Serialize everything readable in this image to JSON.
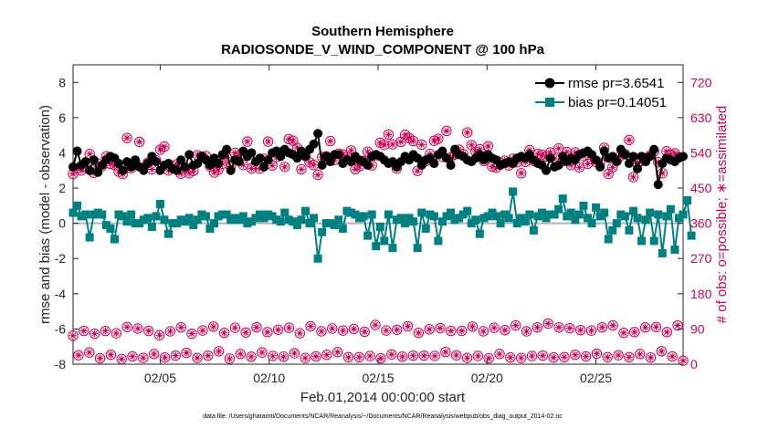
{
  "chart_data": {
    "type": "line",
    "title": "Southern Hemisphere",
    "subtitle": "RADIOSONDE_V_WIND_COMPONENT @ 100 hPa",
    "xlabel": "Feb.01,2014 00:00:00 start",
    "ylabel": "rmse and bias (model - observation)",
    "y2label": "# of obs: o=possible; ∗=assimilated",
    "footer": "data file: /Users/gharamti/Documents/NCAR/Reanalysis/~/Documents/NCAR/Reanalysis/webpub/obs_diag_output_2014-02.nc",
    "xlim": [
      1,
      29
    ],
    "ylim": [
      -8,
      9
    ],
    "y2lim": [
      0,
      765
    ],
    "x_ticks": [
      5,
      10,
      15,
      20,
      25
    ],
    "x_tick_labels": [
      "02/05",
      "02/10",
      "02/15",
      "02/20",
      "02/25"
    ],
    "y_ticks": [
      -8,
      -6,
      -4,
      -2,
      0,
      2,
      4,
      6,
      8
    ],
    "y_tick_labels": [
      "-8",
      "-6",
      "-4",
      "-2",
      "0",
      "2",
      "4",
      "6",
      "8"
    ],
    "y2_ticks": [
      0,
      90,
      180,
      270,
      360,
      450,
      540,
      630,
      720
    ],
    "y2_tick_labels": [
      "0",
      "90",
      "180",
      "270",
      "360",
      "450",
      "540",
      "630",
      "720"
    ],
    "zero_line": 0,
    "legend_position": "top-right",
    "colors": {
      "rmse": "#000000",
      "bias": "#008080",
      "obs": "#cc0055",
      "zero": "#b3b3b3"
    },
    "series": [
      {
        "name": "rmse pr=3.6541",
        "marker": "circle",
        "values": [
          3.2,
          4.1,
          3.3,
          3.5,
          3.0,
          3.6,
          2.9,
          3.3,
          3.6,
          3.8,
          3.7,
          3.4,
          3.0,
          3.5,
          3.2,
          3.6,
          3.2,
          3.0,
          3.4,
          3.8,
          3.5,
          3.0,
          3.3,
          3.4,
          3.1,
          3.0,
          3.6,
          3.2,
          3.9,
          3.3,
          3.4,
          3.8,
          3.6,
          3.3,
          3.7,
          3.4,
          3.9,
          4.2,
          3.0,
          3.6,
          3.5,
          4.1,
          3.8,
          4.0,
          3.5,
          3.7,
          3.2,
          3.6,
          4.0,
          4.1,
          3.8,
          4.2,
          4.0,
          3.9,
          3.7,
          4.1,
          3.8,
          4.2,
          4.5,
          5.1,
          3.3,
          3.8,
          3.5,
          3.9,
          3.9,
          3.4,
          3.6,
          3.5,
          3.8,
          3.6,
          3.5,
          3.3,
          3.8,
          3.9,
          3.8,
          3.6,
          3.4,
          3.5,
          3.2,
          3.5,
          3.8,
          3.6,
          3.9,
          3.7,
          3.3,
          3.6,
          3.7,
          3.4,
          3.9,
          4.1,
          3.7,
          3.3,
          4.2,
          3.9,
          3.8,
          3.6,
          3.5,
          3.7,
          3.9,
          3.6,
          3.9,
          3.7,
          3.6,
          3.3,
          3.4,
          3.5,
          3.4,
          3.7,
          3.8,
          3.7,
          3.9,
          3.6,
          3.4,
          3.3,
          3.0,
          3.7,
          3.2,
          3.3,
          3.8,
          3.5,
          3.7,
          3.6,
          3.9,
          4.0,
          4.1,
          3.9,
          3.6,
          3.2,
          4.1,
          3.7,
          3.8,
          3.5,
          4.2,
          3.9,
          3.4,
          3.8,
          3.1,
          3.8,
          3.5,
          3.8,
          4.2,
          2.2,
          3.4,
          3.7,
          3.6,
          3.5,
          3.7,
          3.8
        ]
      },
      {
        "name": "bias pr=0.14051",
        "marker": "square",
        "values": [
          0.6,
          1.0,
          0.4,
          0.5,
          -0.8,
          0.5,
          0.6,
          0.5,
          -0.1,
          -0.3,
          -0.9,
          0.5,
          0.4,
          0.1,
          0.5,
          0.0,
          0.0,
          0.2,
          0.3,
          -0.2,
          0.4,
          1.1,
          0.2,
          -0.6,
          0.0,
          0.0,
          0.2,
          0.1,
          0.3,
          -0.1,
          0.2,
          0.5,
          0.4,
          -0.3,
          0.0,
          0.4,
          0.5,
          0.5,
          0.2,
          0.3,
          0.2,
          0.4,
          0.0,
          0.1,
          0.3,
          0.5,
          0.3,
          0.5,
          0.4,
          0.2,
          0.1,
          0.6,
          0.2,
          0.1,
          -0.1,
          0.2,
          0.7,
          0.0,
          0.3,
          -2.0,
          -0.5,
          0.0,
          0.0,
          -0.1,
          0.2,
          -0.3,
          0.7,
          0.6,
          0.5,
          0.3,
          0.4,
          -0.7,
          0.5,
          -1.3,
          -0.2,
          -1.0,
          0.5,
          -1.4,
          0.2,
          0.3,
          0.0,
          0.3,
          0.1,
          -1.4,
          0.6,
          -0.3,
          0.5,
          0.4,
          -1.0,
          0.1,
          0.4,
          0.6,
          0.2,
          0.3,
          0.5,
          0.7,
          0.0,
          0.2,
          -0.6,
          0.3,
          0.4,
          0.6,
          0.4,
          0.0,
          0.5,
          0.3,
          1.8,
          0.0,
          0.3,
          0.1,
          0.5,
          -0.4,
          0.4,
          0.6,
          0.3,
          0.5,
          0.5,
          0.8,
          1.4,
          0.4,
          0.6,
          0.2,
          0.5,
          1.0,
          0.3,
          0.0,
          0.9,
          0.4,
          0.6,
          -0.9,
          -0.4,
          0.0,
          0.5,
          0.4,
          -0.4,
          0.7,
          0.3,
          -1.0,
          0.2,
          0.6,
          -1.0,
          0.5,
          -1.7,
          0.4,
          0.8,
          -1.5,
          0.3,
          0.5,
          1.3,
          -0.7
        ]
      }
    ],
    "obs_possible": [
      486,
      501,
      495,
      504,
      537,
      489,
      513,
      506,
      531,
      512,
      509,
      492,
      486,
      578,
      501,
      514,
      568,
      502,
      515,
      498,
      521,
      548,
      556,
      495,
      506,
      511,
      487,
      502,
      488,
      494,
      534,
      530,
      532,
      506,
      490,
      497,
      512,
      528,
      505,
      540,
      533,
      509,
      569,
      500,
      510,
      500,
      525,
      569,
      508,
      529,
      541,
      504,
      575,
      571,
      553,
      498,
      532,
      516,
      509,
      484,
      529,
      531,
      570,
      522,
      538,
      536,
      530,
      546,
      498,
      506,
      519,
      543,
      508,
      534,
      566,
      560,
      587,
      562,
      500,
      568,
      586,
      578,
      570,
      494,
      561,
      519,
      537,
      571,
      576,
      530,
      596,
      528,
      536,
      548,
      537,
      592,
      560,
      543,
      549,
      519,
      557,
      505,
      502,
      515,
      520,
      508,
      525,
      516,
      488,
      517,
      547,
      519,
      537,
      535,
      531,
      541,
      525,
      551,
      519,
      542,
      509,
      541,
      503,
      532,
      512,
      523,
      517,
      514,
      553,
      486,
      503,
      520,
      533,
      537,
      573,
      478,
      513,
      519,
      525,
      533,
      543,
      516,
      488,
      544,
      535,
      539,
      529
    ],
    "obs_assimilated": [
      479,
      493,
      488,
      496,
      530,
      482,
      506,
      499,
      524,
      505,
      502,
      485,
      479,
      571,
      494,
      507,
      561,
      495,
      508,
      491,
      514,
      541,
      549,
      488,
      499,
      504,
      480,
      495,
      481,
      487,
      527,
      523,
      525,
      499,
      483,
      490,
      505,
      521,
      498,
      533,
      526,
      502,
      562,
      493,
      503,
      493,
      518,
      562,
      501,
      522,
      534,
      497,
      568,
      564,
      546,
      491,
      525,
      509,
      502,
      477,
      522,
      524,
      563,
      515,
      531,
      529,
      523,
      539,
      491,
      499,
      512,
      536,
      501,
      527,
      559,
      553,
      580,
      555,
      493,
      561,
      579,
      571,
      563,
      487,
      554,
      512,
      530,
      564,
      569,
      523,
      589,
      521,
      529,
      541,
      530,
      585,
      553,
      536,
      542,
      512,
      550,
      498,
      495,
      508,
      513,
      501,
      518,
      509,
      481,
      510,
      540,
      512,
      530,
      528,
      524,
      534,
      518,
      544,
      512,
      535,
      502,
      534,
      496,
      525,
      505,
      516,
      510,
      507,
      546,
      479,
      496,
      513,
      526,
      530,
      566,
      471,
      506,
      512,
      518,
      526,
      536,
      509,
      481,
      537,
      528,
      532,
      522
    ],
    "obs_low_possible": [
      73,
      23,
      85,
      30,
      78,
      15,
      85,
      24,
      79,
      13,
      95,
      20,
      91,
      16,
      85,
      26,
      74,
      17,
      84,
      22,
      94,
      29,
      78,
      16,
      86,
      22,
      96,
      33,
      80,
      14,
      93,
      26,
      81,
      19,
      94,
      30,
      82,
      21,
      88,
      19,
      93,
      28,
      79,
      16,
      97,
      20,
      84,
      24,
      91,
      31,
      86,
      18,
      90,
      18,
      83,
      21,
      100,
      15,
      86,
      25,
      88,
      19,
      97,
      22,
      80,
      22,
      89,
      21,
      92,
      31,
      85,
      23,
      85,
      16,
      96,
      21,
      84,
      15,
      93,
      26,
      87,
      17,
      99,
      16,
      84,
      21,
      94,
      22,
      104,
      17,
      94,
      18,
      92,
      24,
      87,
      20,
      86,
      27,
      94,
      18,
      99,
      23,
      80,
      18,
      82,
      26,
      94,
      17,
      95,
      33,
      82,
      20,
      99,
      9
    ]
  }
}
